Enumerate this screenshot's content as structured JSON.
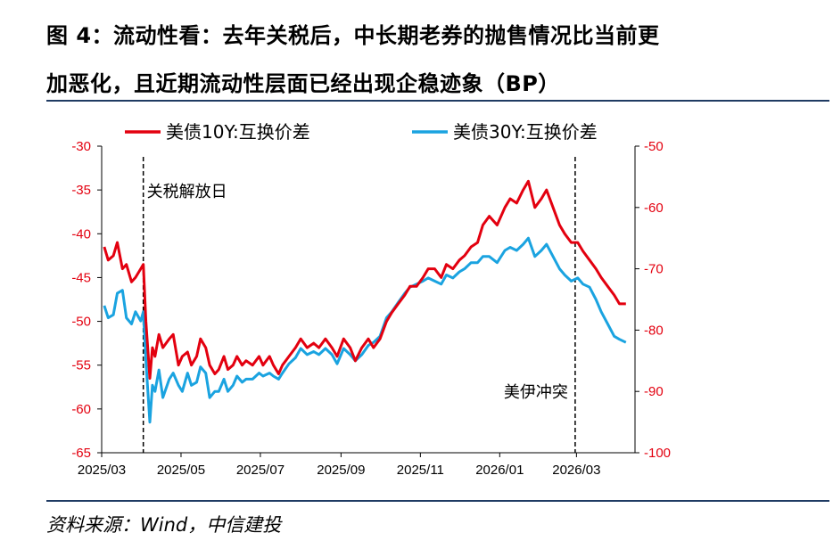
{
  "title_line1": "图 4：流动性看：去年关税后，中长期老券的抛售情况比当前更",
  "title_line2": "加恶化，且近期流动性层面已经出现企稳迹象（BP）",
  "source": "资料来源：Wind，中信建投",
  "colors": {
    "series_10y": "#e3000f",
    "series_30y": "#1aa3e0",
    "right_axis_text": "#e3000f",
    "rule": "#1f3b63"
  },
  "chart_data": {
    "type": "line",
    "title": "",
    "legend": [
      "美债10Y:互换价差",
      "美债30Y:互换价差"
    ],
    "legend_position": "top",
    "x_range": [
      "2025-03-01",
      "2026-04-15"
    ],
    "x_ticks": [
      "2025/03",
      "2025/05",
      "2025/07",
      "2025/09",
      "2025/11",
      "2026/01",
      "2026/03"
    ],
    "y_left": {
      "min": -65,
      "max": -30,
      "ticks": [
        -30,
        -35,
        -40,
        -45,
        -50,
        -55,
        -60,
        -65
      ],
      "series": "美债10Y:互换价差"
    },
    "y_right": {
      "min": -100,
      "max": -50,
      "ticks": [
        -50,
        -60,
        -70,
        -80,
        -90,
        -100
      ],
      "series": "美债30Y:互换价差"
    },
    "grid": false,
    "annotations": [
      {
        "label": "关税解放日",
        "x": "2025-04-02"
      },
      {
        "label": "美伊冲突",
        "x": "2026-02-28"
      }
    ],
    "series": [
      {
        "name": "美债10Y:互换价差",
        "axis": "left",
        "x": [
          "2025-03-03",
          "2025-03-06",
          "2025-03-10",
          "2025-03-13",
          "2025-03-17",
          "2025-03-20",
          "2025-03-24",
          "2025-03-27",
          "2025-03-31",
          "2025-04-02",
          "2025-04-04",
          "2025-04-07",
          "2025-04-09",
          "2025-04-11",
          "2025-04-14",
          "2025-04-17",
          "2025-04-22",
          "2025-04-25",
          "2025-04-29",
          "2025-05-02",
          "2025-05-06",
          "2025-05-09",
          "2025-05-13",
          "2025-05-16",
          "2025-05-20",
          "2025-05-23",
          "2025-05-27",
          "2025-05-30",
          "2025-06-03",
          "2025-06-06",
          "2025-06-10",
          "2025-06-13",
          "2025-06-17",
          "2025-06-20",
          "2025-06-25",
          "2025-06-30",
          "2025-07-03",
          "2025-07-08",
          "2025-07-11",
          "2025-07-15",
          "2025-07-18",
          "2025-07-23",
          "2025-07-28",
          "2025-08-01",
          "2025-08-06",
          "2025-08-11",
          "2025-08-15",
          "2025-08-20",
          "2025-08-25",
          "2025-08-29",
          "2025-09-03",
          "2025-09-08",
          "2025-09-12",
          "2025-09-17",
          "2025-09-22",
          "2025-09-26",
          "2025-10-01",
          "2025-10-06",
          "2025-10-10",
          "2025-10-15",
          "2025-10-20",
          "2025-10-24",
          "2025-10-29",
          "2025-11-03",
          "2025-11-07",
          "2025-11-12",
          "2025-11-17",
          "2025-11-21",
          "2025-11-26",
          "2025-12-01",
          "2025-12-05",
          "2025-12-10",
          "2025-12-15",
          "2025-12-19",
          "2025-12-24",
          "2025-12-30",
          "2026-01-05",
          "2026-01-09",
          "2026-01-14",
          "2026-01-19",
          "2026-01-23",
          "2026-01-28",
          "2026-02-02",
          "2026-02-06",
          "2026-02-11",
          "2026-02-16",
          "2026-02-20",
          "2026-02-25",
          "2026-03-02",
          "2026-03-06",
          "2026-03-11",
          "2026-03-16",
          "2026-03-20",
          "2026-03-25",
          "2026-03-30",
          "2026-04-03",
          "2026-04-08"
        ],
        "values": [
          -41.5,
          -43,
          -42.5,
          -41,
          -44,
          -43.5,
          -45.5,
          -45,
          -44,
          -43.5,
          -50,
          -56.5,
          -53,
          -54,
          -51.5,
          -53,
          -52,
          -51.5,
          -55,
          -54,
          -53.5,
          -55,
          -54,
          -52,
          -53,
          -55,
          -56,
          -55.5,
          -54,
          -55.5,
          -55,
          -54,
          -55,
          -54.5,
          -55,
          -54,
          -55,
          -54,
          -55,
          -56,
          -55,
          -54,
          -53,
          -52,
          -53,
          -52.5,
          -53,
          -52,
          -53,
          -54,
          -52,
          -53,
          -54.5,
          -53,
          -52,
          -53,
          -52,
          -50,
          -49,
          -48,
          -47,
          -46,
          -46,
          -45,
          -44,
          -44,
          -45,
          -43.5,
          -44,
          -43,
          -42.5,
          -41.5,
          -41,
          -39,
          -38,
          -39,
          -37,
          -36,
          -36.5,
          -35,
          -34,
          -37,
          -36,
          -35,
          -37,
          -39,
          -40,
          -41,
          -41,
          -42,
          -43,
          -44,
          -45,
          -46,
          -47,
          -48,
          -48
        ]
      },
      {
        "name": "美债30Y:互换价差",
        "axis": "right",
        "x": [
          "2025-03-03",
          "2025-03-06",
          "2025-03-10",
          "2025-03-13",
          "2025-03-17",
          "2025-03-20",
          "2025-03-24",
          "2025-03-27",
          "2025-03-31",
          "2025-04-02",
          "2025-04-04",
          "2025-04-07",
          "2025-04-09",
          "2025-04-11",
          "2025-04-14",
          "2025-04-17",
          "2025-04-22",
          "2025-04-25",
          "2025-04-29",
          "2025-05-02",
          "2025-05-06",
          "2025-05-09",
          "2025-05-13",
          "2025-05-16",
          "2025-05-20",
          "2025-05-23",
          "2025-05-27",
          "2025-05-30",
          "2025-06-03",
          "2025-06-06",
          "2025-06-10",
          "2025-06-13",
          "2025-06-17",
          "2025-06-20",
          "2025-06-25",
          "2025-06-30",
          "2025-07-03",
          "2025-07-08",
          "2025-07-11",
          "2025-07-15",
          "2025-07-18",
          "2025-07-23",
          "2025-07-28",
          "2025-08-01",
          "2025-08-06",
          "2025-08-11",
          "2025-08-15",
          "2025-08-20",
          "2025-08-25",
          "2025-08-29",
          "2025-09-03",
          "2025-09-08",
          "2025-09-12",
          "2025-09-17",
          "2025-09-22",
          "2025-09-26",
          "2025-10-01",
          "2025-10-06",
          "2025-10-10",
          "2025-10-15",
          "2025-10-20",
          "2025-10-24",
          "2025-10-29",
          "2025-11-03",
          "2025-11-07",
          "2025-11-12",
          "2025-11-17",
          "2025-11-21",
          "2025-11-26",
          "2025-12-01",
          "2025-12-05",
          "2025-12-10",
          "2025-12-15",
          "2025-12-19",
          "2025-12-24",
          "2025-12-30",
          "2026-01-05",
          "2026-01-09",
          "2026-01-14",
          "2026-01-19",
          "2026-01-23",
          "2026-01-28",
          "2026-02-02",
          "2026-02-06",
          "2026-02-11",
          "2026-02-16",
          "2026-02-20",
          "2026-02-25",
          "2026-03-02",
          "2026-03-06",
          "2026-03-11",
          "2026-03-16",
          "2026-03-20",
          "2026-03-25",
          "2026-03-30",
          "2026-04-03",
          "2026-04-08"
        ],
        "values": [
          -76,
          -78,
          -77.5,
          -74,
          -73.5,
          -78,
          -79,
          -77,
          -78.5,
          -77,
          -85,
          -95,
          -89,
          -90,
          -86.5,
          -91,
          -88,
          -87,
          -89,
          -90,
          -87,
          -89,
          -88.5,
          -86,
          -87,
          -91,
          -90,
          -90,
          -88,
          -90,
          -89,
          -87.5,
          -88.5,
          -88,
          -88,
          -87,
          -87.5,
          -87,
          -87.5,
          -88,
          -87,
          -85.5,
          -84.5,
          -83,
          -84,
          -83.5,
          -84,
          -83,
          -84,
          -85.5,
          -83,
          -84,
          -85,
          -84,
          -82.5,
          -82,
          -81,
          -78,
          -77,
          -75.5,
          -74,
          -73,
          -72.5,
          -72,
          -71.5,
          -72,
          -72.5,
          -71,
          -71.5,
          -70.5,
          -70,
          -69,
          -69,
          -68,
          -68,
          -69,
          -67,
          -66.5,
          -67,
          -66,
          -65,
          -68,
          -67,
          -66,
          -68,
          -70,
          -71,
          -72,
          -71.5,
          -72.5,
          -73,
          -75,
          -77,
          -79,
          -81,
          -81.5,
          -82
        ]
      }
    ]
  }
}
